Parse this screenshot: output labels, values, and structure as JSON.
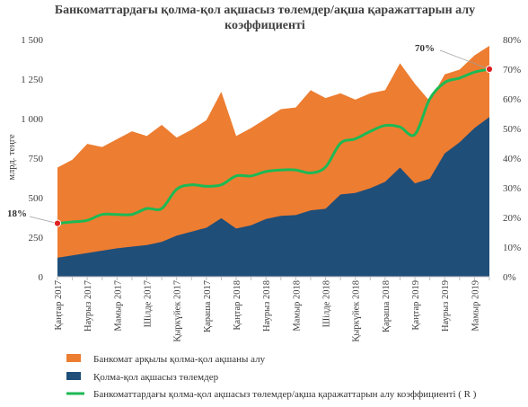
{
  "chart_data": {
    "type": "area",
    "title": "Банкоматтардағы қолма-қол ақшасыз төлемдер/ақша қаражаттарын алу коэффициенті",
    "title_lines": [
      "Банкоматтардағы қолма-қол ақшасыз төлемдер/ақша қаражаттарын алу",
      "коэффициенті"
    ],
    "ylabel": "млрд. теңге",
    "ylim": [
      0,
      1500
    ],
    "y_ticks": [
      "0",
      "250",
      "500",
      "750",
      "1 000",
      "1 250",
      "1 500"
    ],
    "y2lim": [
      0,
      80
    ],
    "y2_ticks": [
      "0%",
      "10%",
      "20%",
      "30%",
      "40%",
      "50%",
      "60%",
      "70%",
      "80%"
    ],
    "grid": false,
    "legend_position": "bottom",
    "x_tick_labels": [
      "Қаңтар 2017",
      "Наурыз 2017",
      "Мамыр 2017",
      "Шілде 2017",
      "Қыркүйек 2017",
      "Қараша 2017",
      "Қаңтар 2018",
      "Наурыз 2018",
      "Мамыр 2018",
      "Шілде 2018",
      "Қыркүйек 2018",
      "Қараша 2018",
      "Қаңтар 2019",
      "Наурыз 2019",
      "Мамыр 2019"
    ],
    "x": [
      "2017-01",
      "2017-02",
      "2017-03",
      "2017-04",
      "2017-05",
      "2017-06",
      "2017-07",
      "2017-08",
      "2017-09",
      "2017-10",
      "2017-11",
      "2017-12",
      "2018-01",
      "2018-02",
      "2018-03",
      "2018-04",
      "2018-05",
      "2018-06",
      "2018-07",
      "2018-08",
      "2018-09",
      "2018-10",
      "2018-11",
      "2018-12",
      "2019-01",
      "2019-02",
      "2019-03",
      "2019-04",
      "2019-05",
      "2019-06"
    ],
    "series": [
      {
        "name": "Банкомат арқылы қолма-қол ақшаны алу",
        "type": "area",
        "color": "#ED7D31",
        "axis": "left",
        "values": [
          690,
          740,
          840,
          820,
          870,
          920,
          890,
          960,
          880,
          930,
          990,
          1170,
          890,
          940,
          1000,
          1060,
          1070,
          1180,
          1130,
          1160,
          1120,
          1160,
          1180,
          1350,
          1220,
          1110,
          1280,
          1310,
          1400,
          1460
        ]
      },
      {
        "name": "Қолма-қол ақшасыз төлемдер",
        "type": "area",
        "color": "#1F4E79",
        "axis": "left",
        "values": [
          120,
          135,
          150,
          165,
          180,
          190,
          200,
          220,
          260,
          285,
          310,
          370,
          305,
          325,
          365,
          385,
          390,
          420,
          430,
          520,
          530,
          560,
          600,
          690,
          590,
          620,
          780,
          850,
          940,
          1010
        ]
      },
      {
        "name": "Банкоматтардағы қолма-қол ақшасыз төлемдер/ақша қаражаттарын алу коэффициенті ( R )",
        "type": "line",
        "color": "#1DB954",
        "axis": "right",
        "values": [
          18,
          18.5,
          19,
          21,
          21,
          21,
          23,
          23,
          29.5,
          31,
          30.5,
          31,
          34,
          34,
          35.5,
          36,
          36,
          35,
          37,
          45,
          46.5,
          49,
          51,
          50.5,
          48,
          60,
          65.5,
          67,
          69,
          70
        ]
      }
    ],
    "annotations": [
      {
        "text": "18%",
        "x": "2017-01",
        "y": 18
      },
      {
        "text": "70%",
        "x": "2019-06",
        "y": 70
      }
    ]
  }
}
